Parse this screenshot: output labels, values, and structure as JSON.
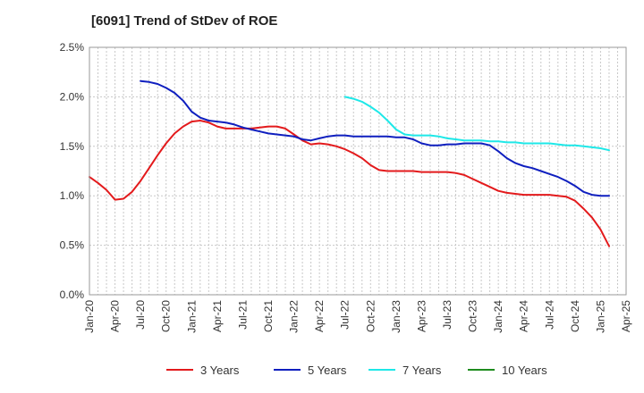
{
  "chart_data": {
    "type": "line",
    "title": "[6091]  Trend of StDev of ROE",
    "xlabel": "",
    "ylabel": "",
    "x_ticks": [
      "Jan-20",
      "Apr-20",
      "Jul-20",
      "Oct-20",
      "Jan-21",
      "Apr-21",
      "Jul-21",
      "Oct-21",
      "Jan-22",
      "Apr-22",
      "Jul-22",
      "Oct-22",
      "Jan-23",
      "Apr-23",
      "Jul-23",
      "Oct-23",
      "Jan-24",
      "Apr-24",
      "Jul-24",
      "Oct-24",
      "Jan-25",
      "Apr-25"
    ],
    "y_ticks": [
      "0.0%",
      "0.5%",
      "1.0%",
      "1.5%",
      "2.0%",
      "2.5%"
    ],
    "ylim": [
      0,
      2.5
    ],
    "y_unit": "%",
    "grid": true,
    "legend_position": "bottom",
    "series": [
      {
        "name": "3 Years",
        "color": "#e31a1c",
        "points": [
          [
            "2020-01",
            1.19
          ],
          [
            "2020-02",
            1.13
          ],
          [
            "2020-03",
            1.06
          ],
          [
            "2020-04",
            0.96
          ],
          [
            "2020-05",
            0.97
          ],
          [
            "2020-06",
            1.04
          ],
          [
            "2020-07",
            1.15
          ],
          [
            "2020-08",
            1.28
          ],
          [
            "2020-09",
            1.41
          ],
          [
            "2020-10",
            1.53
          ],
          [
            "2020-11",
            1.63
          ],
          [
            "2020-12",
            1.7
          ],
          [
            "2021-01",
            1.75
          ],
          [
            "2021-02",
            1.76
          ],
          [
            "2021-03",
            1.74
          ],
          [
            "2021-04",
            1.7
          ],
          [
            "2021-05",
            1.68
          ],
          [
            "2021-06",
            1.68
          ],
          [
            "2021-07",
            1.68
          ],
          [
            "2021-08",
            1.68
          ],
          [
            "2021-09",
            1.69
          ],
          [
            "2021-10",
            1.7
          ],
          [
            "2021-11",
            1.7
          ],
          [
            "2021-12",
            1.68
          ],
          [
            "2022-01",
            1.62
          ],
          [
            "2022-02",
            1.56
          ],
          [
            "2022-03",
            1.52
          ],
          [
            "2022-04",
            1.53
          ],
          [
            "2022-05",
            1.52
          ],
          [
            "2022-06",
            1.5
          ],
          [
            "2022-07",
            1.47
          ],
          [
            "2022-08",
            1.43
          ],
          [
            "2022-09",
            1.38
          ],
          [
            "2022-10",
            1.31
          ],
          [
            "2022-11",
            1.26
          ],
          [
            "2022-12",
            1.25
          ],
          [
            "2023-01",
            1.25
          ],
          [
            "2023-02",
            1.25
          ],
          [
            "2023-03",
            1.25
          ],
          [
            "2023-04",
            1.24
          ],
          [
            "2023-05",
            1.24
          ],
          [
            "2023-06",
            1.24
          ],
          [
            "2023-07",
            1.24
          ],
          [
            "2023-08",
            1.23
          ],
          [
            "2023-09",
            1.21
          ],
          [
            "2023-10",
            1.17
          ],
          [
            "2023-11",
            1.13
          ],
          [
            "2023-12",
            1.09
          ],
          [
            "2024-01",
            1.05
          ],
          [
            "2024-02",
            1.03
          ],
          [
            "2024-03",
            1.02
          ],
          [
            "2024-04",
            1.01
          ],
          [
            "2024-05",
            1.01
          ],
          [
            "2024-06",
            1.01
          ],
          [
            "2024-07",
            1.01
          ],
          [
            "2024-08",
            1.0
          ],
          [
            "2024-09",
            0.99
          ],
          [
            "2024-10",
            0.95
          ],
          [
            "2024-11",
            0.87
          ],
          [
            "2024-12",
            0.78
          ],
          [
            "2025-01",
            0.66
          ],
          [
            "2025-02",
            0.49
          ]
        ]
      },
      {
        "name": "5 Years",
        "color": "#0f1fbf",
        "points": [
          [
            "2020-07",
            2.16
          ],
          [
            "2020-08",
            2.15
          ],
          [
            "2020-09",
            2.13
          ],
          [
            "2020-10",
            2.09
          ],
          [
            "2020-11",
            2.04
          ],
          [
            "2020-12",
            1.96
          ],
          [
            "2021-01",
            1.85
          ],
          [
            "2021-02",
            1.79
          ],
          [
            "2021-03",
            1.76
          ],
          [
            "2021-04",
            1.75
          ],
          [
            "2021-05",
            1.74
          ],
          [
            "2021-06",
            1.72
          ],
          [
            "2021-07",
            1.69
          ],
          [
            "2021-08",
            1.67
          ],
          [
            "2021-09",
            1.65
          ],
          [
            "2021-10",
            1.63
          ],
          [
            "2021-11",
            1.62
          ],
          [
            "2021-12",
            1.61
          ],
          [
            "2022-01",
            1.6
          ],
          [
            "2022-02",
            1.57
          ],
          [
            "2022-03",
            1.56
          ],
          [
            "2022-04",
            1.58
          ],
          [
            "2022-05",
            1.6
          ],
          [
            "2022-06",
            1.61
          ],
          [
            "2022-07",
            1.61
          ],
          [
            "2022-08",
            1.6
          ],
          [
            "2022-09",
            1.6
          ],
          [
            "2022-10",
            1.6
          ],
          [
            "2022-11",
            1.6
          ],
          [
            "2022-12",
            1.6
          ],
          [
            "2023-01",
            1.59
          ],
          [
            "2023-02",
            1.59
          ],
          [
            "2023-03",
            1.57
          ],
          [
            "2023-04",
            1.53
          ],
          [
            "2023-05",
            1.51
          ],
          [
            "2023-06",
            1.51
          ],
          [
            "2023-07",
            1.52
          ],
          [
            "2023-08",
            1.52
          ],
          [
            "2023-09",
            1.53
          ],
          [
            "2023-10",
            1.53
          ],
          [
            "2023-11",
            1.53
          ],
          [
            "2023-12",
            1.51
          ],
          [
            "2024-01",
            1.45
          ],
          [
            "2024-02",
            1.38
          ],
          [
            "2024-03",
            1.33
          ],
          [
            "2024-04",
            1.3
          ],
          [
            "2024-05",
            1.28
          ],
          [
            "2024-06",
            1.25
          ],
          [
            "2024-07",
            1.22
          ],
          [
            "2024-08",
            1.19
          ],
          [
            "2024-09",
            1.15
          ],
          [
            "2024-10",
            1.1
          ],
          [
            "2024-11",
            1.04
          ],
          [
            "2024-12",
            1.01
          ],
          [
            "2025-01",
            1.0
          ],
          [
            "2025-02",
            1.0
          ]
        ]
      },
      {
        "name": "7 Years",
        "color": "#1ee8e8",
        "points": [
          [
            "2022-07",
            2.0
          ],
          [
            "2022-08",
            1.98
          ],
          [
            "2022-09",
            1.95
          ],
          [
            "2022-10",
            1.9
          ],
          [
            "2022-11",
            1.84
          ],
          [
            "2022-12",
            1.76
          ],
          [
            "2023-01",
            1.67
          ],
          [
            "2023-02",
            1.62
          ],
          [
            "2023-03",
            1.61
          ],
          [
            "2023-04",
            1.61
          ],
          [
            "2023-05",
            1.61
          ],
          [
            "2023-06",
            1.6
          ],
          [
            "2023-07",
            1.58
          ],
          [
            "2023-08",
            1.57
          ],
          [
            "2023-09",
            1.56
          ],
          [
            "2023-10",
            1.56
          ],
          [
            "2023-11",
            1.56
          ],
          [
            "2023-12",
            1.55
          ],
          [
            "2024-01",
            1.55
          ],
          [
            "2024-02",
            1.54
          ],
          [
            "2024-03",
            1.54
          ],
          [
            "2024-04",
            1.53
          ],
          [
            "2024-05",
            1.53
          ],
          [
            "2024-06",
            1.53
          ],
          [
            "2024-07",
            1.53
          ],
          [
            "2024-08",
            1.52
          ],
          [
            "2024-09",
            1.51
          ],
          [
            "2024-10",
            1.51
          ],
          [
            "2024-11",
            1.5
          ],
          [
            "2024-12",
            1.49
          ],
          [
            "2025-01",
            1.48
          ],
          [
            "2025-02",
            1.46
          ]
        ]
      },
      {
        "name": "10 Years",
        "color": "#1e8c1e",
        "points": []
      }
    ]
  }
}
